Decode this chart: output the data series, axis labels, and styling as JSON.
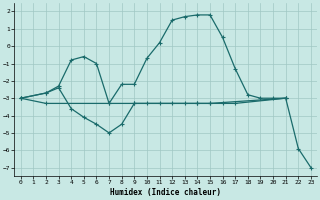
{
  "xlabel": "Humidex (Indice chaleur)",
  "xlim": [
    -0.5,
    23.5
  ],
  "ylim": [
    -7.5,
    2.5
  ],
  "yticks": [
    2,
    1,
    0,
    -1,
    -2,
    -3,
    -4,
    -5,
    -6,
    -7
  ],
  "xticks": [
    0,
    1,
    2,
    3,
    4,
    5,
    6,
    7,
    8,
    9,
    10,
    11,
    12,
    13,
    14,
    15,
    16,
    17,
    18,
    19,
    20,
    21,
    22,
    23
  ],
  "bg_color": "#c8e8e4",
  "grid_color": "#a0c8c4",
  "line_color": "#1a6b6b",
  "line1_x": [
    0,
    2,
    3,
    4,
    5,
    6,
    7,
    8,
    9,
    10,
    11,
    12,
    13,
    14,
    15,
    16,
    17,
    21
  ],
  "line1_y": [
    -3,
    -2.7,
    -2.4,
    -3.6,
    -4.1,
    -4.5,
    -5.0,
    -4.5,
    -3.3,
    -3.3,
    -3.3,
    -3.3,
    -3.3,
    -3.3,
    -3.3,
    -3.3,
    -3.3,
    -3.0
  ],
  "line2_x": [
    0,
    2,
    3,
    4,
    5,
    6,
    7,
    8,
    9,
    10,
    11,
    12,
    13,
    14,
    15,
    16,
    17,
    18,
    19,
    20,
    21
  ],
  "line2_y": [
    -3,
    -2.7,
    -2.3,
    -0.8,
    -0.6,
    -1.0,
    -3.3,
    -2.2,
    -2.2,
    -0.7,
    0.2,
    1.5,
    1.7,
    1.8,
    1.8,
    0.5,
    -1.3,
    -2.8,
    -3.0,
    -3.0,
    -3.0
  ],
  "line3_x": [
    0,
    2,
    7,
    9,
    14,
    15,
    21,
    22,
    23
  ],
  "line3_y": [
    -3,
    -3.3,
    -3.3,
    -3.3,
    -3.3,
    -3.3,
    -3.0,
    -5.9,
    -7.0
  ]
}
